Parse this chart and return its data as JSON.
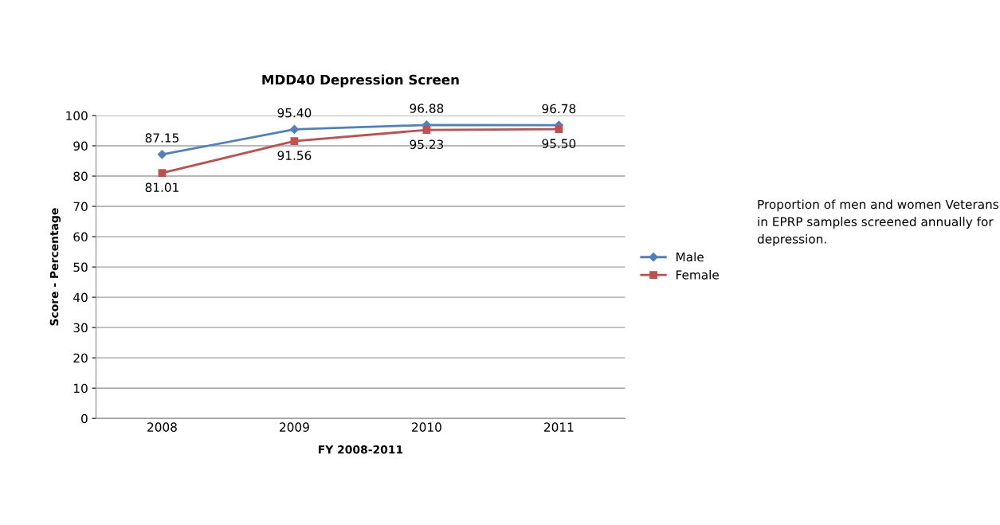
{
  "chart_data": {
    "type": "line",
    "title": "MDD40 Depression Screen",
    "xlabel": "FY 2008-2011",
    "ylabel": "Score - Percentage",
    "categories": [
      "2008",
      "2009",
      "2010",
      "2011"
    ],
    "series": [
      {
        "name": "Male",
        "color": "#4f81bd",
        "marker": "diamond",
        "values": [
          87.15,
          95.4,
          96.88,
          96.78
        ],
        "value_labels": [
          "87.15",
          "95.40",
          "96.88",
          "96.78"
        ]
      },
      {
        "name": "Female",
        "color": "#c0504d",
        "marker": "square",
        "values": [
          81.01,
          91.56,
          95.23,
          95.5
        ],
        "value_labels": [
          "81.01",
          "91.56",
          "95.23",
          "95.50"
        ]
      }
    ],
    "ylim": [
      0,
      100
    ],
    "yticks": [
      0,
      10,
      20,
      30,
      40,
      50,
      60,
      70,
      80,
      90,
      100
    ],
    "grid": "y",
    "legend": "right",
    "line_style": "solid",
    "annotations": [
      "Proportion of men and women Veterans in EPRP samples screened annually for depression."
    ]
  }
}
